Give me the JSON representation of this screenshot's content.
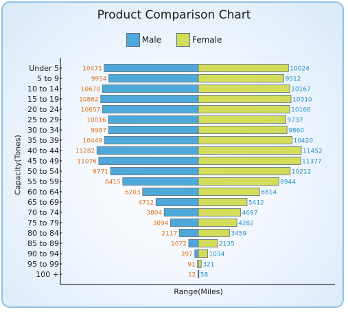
{
  "chart_data": {
    "type": "bar",
    "orientation": "horizontal",
    "title": "Product Comparison Chart",
    "xlabel": "Range(Miles)",
    "ylabel": "Capacity(Tones)",
    "legend_position": "top",
    "categories": [
      "Under 5",
      "5 to 9",
      "10 to 14",
      "15 to 19",
      "20 to 24",
      "25 to 29",
      "30 to 34",
      "35 to 39",
      "40 to 44",
      "45 to 49",
      "50 to 54",
      "55 to 59",
      "60 to 64",
      "65 to 69",
      "70 to 74",
      "75 to 79",
      "80 to 84",
      "85 to 89",
      "90 to 94",
      "95 to 99",
      "100 +"
    ],
    "series": [
      {
        "name": "Male",
        "color": "#4fa8da",
        "label_color": "#e07020",
        "direction": "left",
        "values": [
          10471,
          9954,
          10670,
          10862,
          10657,
          10016,
          9987,
          10449,
          11282,
          11076,
          9771,
          8415,
          6203,
          4712,
          3804,
          3094,
          2117,
          1072,
          397,
          91,
          12
        ]
      },
      {
        "name": "Female",
        "color": "#d4dd5a",
        "label_color": "#2a8fc8",
        "direction": "right",
        "values": [
          10024,
          9512,
          10167,
          10310,
          10166,
          9737,
          9860,
          10420,
          11452,
          11377,
          10212,
          8944,
          6814,
          5412,
          4697,
          4282,
          3459,
          2135,
          1034,
          321,
          58
        ]
      }
    ]
  }
}
